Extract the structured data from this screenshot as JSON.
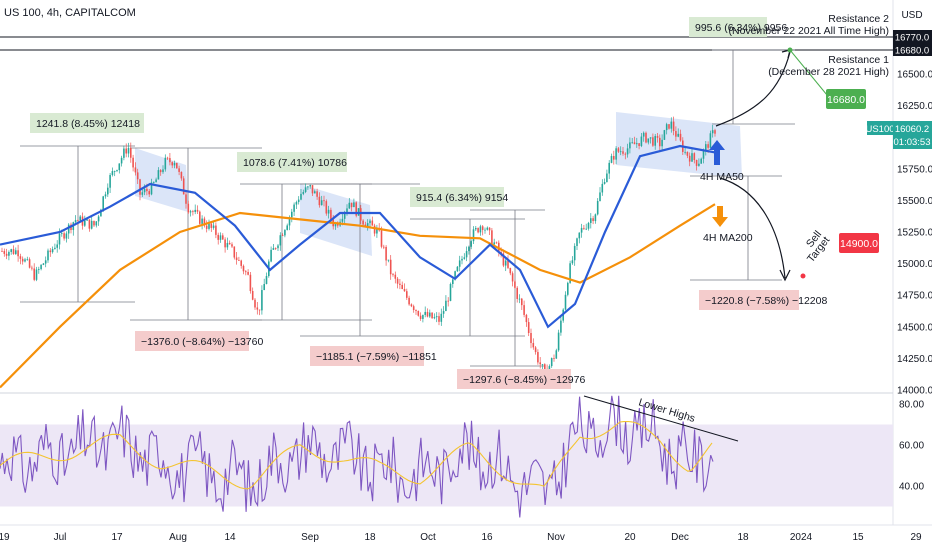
{
  "header": {
    "title": "US 100, 4h, CAPITALCOM"
  },
  "currency": "USD",
  "symbol_tag": "US100",
  "price_badge": {
    "price": "16060.2",
    "countdown": "01:03:53"
  },
  "price_axis": {
    "ticks": [
      {
        "label": "16500.0",
        "v": 16500
      },
      {
        "label": "16250.0",
        "v": 16250
      },
      {
        "label": "16000.0",
        "v": 16000
      },
      {
        "label": "15750.0",
        "v": 15750
      },
      {
        "label": "15500.0",
        "v": 15500
      },
      {
        "label": "15250.0",
        "v": 15250
      },
      {
        "label": "15000.0",
        "v": 15000
      },
      {
        "label": "14750.0",
        "v": 14750
      },
      {
        "label": "14500.0",
        "v": 14500
      },
      {
        "label": "14250.0",
        "v": 14250
      },
      {
        "label": "14000.0",
        "v": 14000
      }
    ],
    "levels": [
      {
        "label": "16770.0",
        "v": 16770
      },
      {
        "label": "16680.0",
        "v": 16680
      }
    ]
  },
  "rsi_axis": {
    "ticks": [
      {
        "label": "80.00",
        "v": 80
      },
      {
        "label": "60.00",
        "v": 60
      },
      {
        "label": "40.00",
        "v": 40
      }
    ]
  },
  "time_axis": [
    {
      "label": "19",
      "pos": 4
    },
    {
      "label": "Jul",
      "pos": 60
    },
    {
      "label": "17",
      "pos": 117
    },
    {
      "label": "Aug",
      "pos": 178
    },
    {
      "label": "14",
      "pos": 230
    },
    {
      "label": "Sep",
      "pos": 310
    },
    {
      "label": "18",
      "pos": 370
    },
    {
      "label": "Oct",
      "pos": 428
    },
    {
      "label": "16",
      "pos": 487
    },
    {
      "label": "Nov",
      "pos": 556
    },
    {
      "label": "20",
      "pos": 630
    },
    {
      "label": "Dec",
      "pos": 680
    },
    {
      "label": "18",
      "pos": 743
    },
    {
      "label": "2024",
      "pos": 801
    },
    {
      "label": "15",
      "pos": 858
    },
    {
      "label": "29",
      "pos": 916
    }
  ],
  "annotations": {
    "resistance2": {
      "line1": "Resistance 2",
      "line2": "(November 22 2021 All Time High)"
    },
    "resistance1": {
      "line1": "Resistance 1",
      "line2": "(December 28 2021 High)"
    },
    "ma50_label": "4H MA50",
    "ma200_label": "4H MA200",
    "target_badge": "16680.0",
    "sell_target_line1": "Sell",
    "sell_target_line2": "Target",
    "sell_badge": "14900.0",
    "rsi_label": "Lower Highs",
    "measures": [
      {
        "text": "1241.8 (8.45%) 12418",
        "type": "up"
      },
      {
        "text": "1078.6 (7.41%) 10786",
        "type": "up"
      },
      {
        "text": "915.4 (6.34%) 9154",
        "type": "up"
      },
      {
        "text": "995.6 (6.34%) 9956",
        "type": "up"
      },
      {
        "text": "−1376.0 (−8.64%) −13760",
        "type": "down"
      },
      {
        "text": "−1185.1 (−7.59%) −11851",
        "type": "down"
      },
      {
        "text": "−1297.6 (−8.45%) −12976",
        "type": "down"
      },
      {
        "text": "−1220.8 (−7.58%) −12208",
        "type": "down"
      }
    ]
  },
  "colors": {
    "up_candle": "#26a69a",
    "down_candle": "#ef5350",
    "ma50": "#2a5bd7",
    "ma200": "#f5900a",
    "rsi": "#7e57c2",
    "rsi_signal": "#f4c430",
    "rsi_band": "#ede7f6",
    "channel": "#cfdcf5",
    "up_box": "#d9ead3",
    "down_box": "#f4cccc",
    "target_green": "#4caf50",
    "sell_red": "#f23645"
  },
  "chart_data": {
    "type": "candlestick",
    "title": "US 100, 4h, CAPITALCOM",
    "price_range": [
      13950,
      16880
    ],
    "rsi_range": [
      20,
      85
    ],
    "close_path": [
      {
        "t": 0,
        "v": 15100
      },
      {
        "t": 18,
        "v": 15100
      },
      {
        "t": 35,
        "v": 14900
      },
      {
        "t": 55,
        "v": 15150
      },
      {
        "t": 75,
        "v": 15350
      },
      {
        "t": 95,
        "v": 15300
      },
      {
        "t": 108,
        "v": 15650
      },
      {
        "t": 120,
        "v": 15820
      },
      {
        "t": 128,
        "v": 15930
      },
      {
        "t": 140,
        "v": 15550
      },
      {
        "t": 152,
        "v": 15600
      },
      {
        "t": 165,
        "v": 15800
      },
      {
        "t": 175,
        "v": 15820
      },
      {
        "t": 188,
        "v": 15450
      },
      {
        "t": 200,
        "v": 15350
      },
      {
        "t": 215,
        "v": 15250
      },
      {
        "t": 232,
        "v": 15100
      },
      {
        "t": 248,
        "v": 14900
      },
      {
        "t": 258,
        "v": 14600
      },
      {
        "t": 270,
        "v": 15050
      },
      {
        "t": 285,
        "v": 15300
      },
      {
        "t": 300,
        "v": 15550
      },
      {
        "t": 310,
        "v": 15600
      },
      {
        "t": 322,
        "v": 15480
      },
      {
        "t": 335,
        "v": 15300
      },
      {
        "t": 350,
        "v": 15500
      },
      {
        "t": 362,
        "v": 15350
      },
      {
        "t": 378,
        "v": 15250
      },
      {
        "t": 392,
        "v": 14900
      },
      {
        "t": 405,
        "v": 14750
      },
      {
        "t": 420,
        "v": 14600
      },
      {
        "t": 440,
        "v": 14550
      },
      {
        "t": 455,
        "v": 14900
      },
      {
        "t": 470,
        "v": 15200
      },
      {
        "t": 482,
        "v": 15320
      },
      {
        "t": 495,
        "v": 15150
      },
      {
        "t": 508,
        "v": 14950
      },
      {
        "t": 522,
        "v": 14650
      },
      {
        "t": 535,
        "v": 14300
      },
      {
        "t": 545,
        "v": 14120
      },
      {
        "t": 556,
        "v": 14300
      },
      {
        "t": 568,
        "v": 14900
      },
      {
        "t": 580,
        "v": 15250
      },
      {
        "t": 595,
        "v": 15400
      },
      {
        "t": 605,
        "v": 15700
      },
      {
        "t": 615,
        "v": 15880
      },
      {
        "t": 630,
        "v": 15920
      },
      {
        "t": 645,
        "v": 16000
      },
      {
        "t": 660,
        "v": 15950
      },
      {
        "t": 670,
        "v": 16120
      },
      {
        "t": 685,
        "v": 15880
      },
      {
        "t": 698,
        "v": 15800
      },
      {
        "t": 708,
        "v": 15950
      },
      {
        "t": 715,
        "v": 16060
      }
    ],
    "ma50": [
      {
        "t": 0,
        "v": 15150
      },
      {
        "t": 60,
        "v": 15250
      },
      {
        "t": 110,
        "v": 15450
      },
      {
        "t": 150,
        "v": 15630
      },
      {
        "t": 195,
        "v": 15560
      },
      {
        "t": 235,
        "v": 15300
      },
      {
        "t": 270,
        "v": 14950
      },
      {
        "t": 300,
        "v": 15150
      },
      {
        "t": 340,
        "v": 15400
      },
      {
        "t": 380,
        "v": 15400
      },
      {
        "t": 420,
        "v": 15050
      },
      {
        "t": 455,
        "v": 14880
      },
      {
        "t": 490,
        "v": 15150
      },
      {
        "t": 520,
        "v": 14950
      },
      {
        "t": 548,
        "v": 14500
      },
      {
        "t": 575,
        "v": 14680
      },
      {
        "t": 605,
        "v": 15250
      },
      {
        "t": 640,
        "v": 15850
      },
      {
        "t": 680,
        "v": 15930
      },
      {
        "t": 715,
        "v": 15880
      }
    ],
    "ma200": [
      {
        "t": 0,
        "v": 14020
      },
      {
        "t": 60,
        "v": 14500
      },
      {
        "t": 120,
        "v": 14950
      },
      {
        "t": 180,
        "v": 15250
      },
      {
        "t": 240,
        "v": 15400
      },
      {
        "t": 300,
        "v": 15350
      },
      {
        "t": 360,
        "v": 15300
      },
      {
        "t": 420,
        "v": 15220
      },
      {
        "t": 480,
        "v": 15200
      },
      {
        "t": 540,
        "v": 14950
      },
      {
        "t": 580,
        "v": 14850
      },
      {
        "t": 630,
        "v": 15050
      },
      {
        "t": 680,
        "v": 15300
      },
      {
        "t": 715,
        "v": 15470
      }
    ],
    "rsi_signal_path": [
      {
        "t": 0,
        "v": 50
      },
      {
        "t": 60,
        "v": 56
      },
      {
        "t": 120,
        "v": 62
      },
      {
        "t": 160,
        "v": 52
      },
      {
        "t": 200,
        "v": 48
      },
      {
        "t": 250,
        "v": 42
      },
      {
        "t": 300,
        "v": 58
      },
      {
        "t": 340,
        "v": 55
      },
      {
        "t": 380,
        "v": 48
      },
      {
        "t": 420,
        "v": 45
      },
      {
        "t": 470,
        "v": 58
      },
      {
        "t": 510,
        "v": 46
      },
      {
        "t": 545,
        "v": 36
      },
      {
        "t": 580,
        "v": 66
      },
      {
        "t": 620,
        "v": 70
      },
      {
        "t": 660,
        "v": 62
      },
      {
        "t": 690,
        "v": 50
      },
      {
        "t": 715,
        "v": 60
      }
    ],
    "rsi_band": [
      30,
      70
    ],
    "levels": [
      16770,
      16680
    ],
    "projected_target": 16680,
    "sell_target": 14900
  }
}
